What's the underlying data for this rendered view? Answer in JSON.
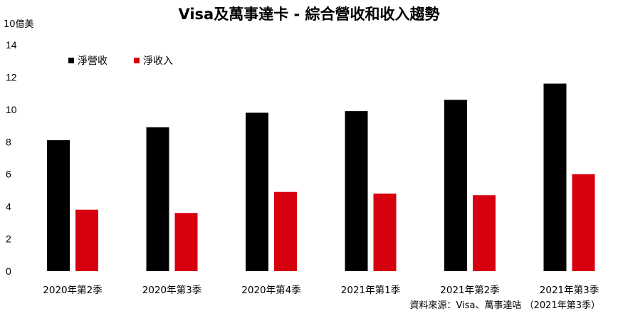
{
  "chart_data": {
    "type": "bar",
    "title": "Visa及萬事達卡 - 綜合營收和收入趨勢",
    "unit_label": "10億美",
    "categories": [
      "2020年第2季",
      "2020年第3季",
      "2020年第4季",
      "2021年第1季",
      "2021年第2季",
      "2021年第3季"
    ],
    "series": [
      {
        "name": "淨營收",
        "color": "#000000",
        "values": [
          8.1,
          8.9,
          9.8,
          9.9,
          10.6,
          11.6
        ]
      },
      {
        "name": "淨收入",
        "color": "#d7000f",
        "values": [
          3.8,
          3.6,
          4.9,
          4.8,
          4.7,
          6.0
        ]
      }
    ],
    "ylim": [
      0,
      14
    ],
    "yticks": [
      0,
      2,
      4,
      6,
      8,
      10,
      12,
      14
    ],
    "grid": false,
    "legend_position": "top-left",
    "source": "資料來源：Visa、萬事達咭 （2021年第3季）"
  }
}
